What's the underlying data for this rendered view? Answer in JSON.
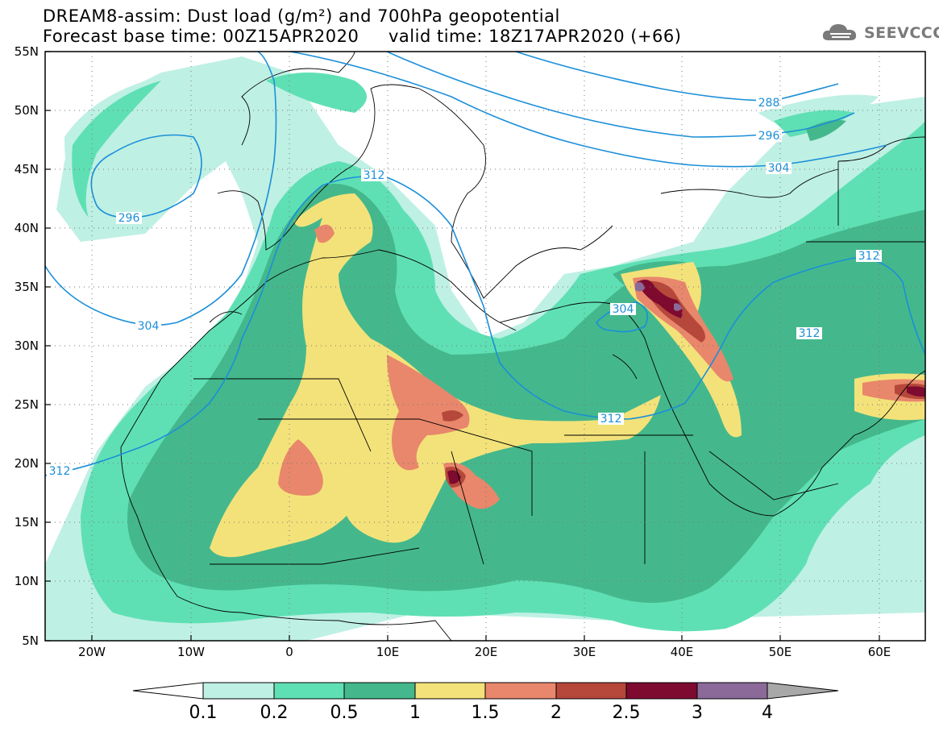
{
  "header": {
    "title": "DREAM8-assim: Dust load (g/m²) and 700hPa geopotential",
    "base_time": "Forecast base time: 00Z15APR2020",
    "valid_time": "valid time: 18Z17APR2020 (+66)",
    "logo_text": "SEEVCCC"
  },
  "map": {
    "lat_labels": [
      "55N",
      "50N",
      "45N",
      "40N",
      "35N",
      "30N",
      "25N",
      "20N",
      "15N",
      "10N",
      "5N"
    ],
    "lon_labels": [
      "20W",
      "10W",
      "0",
      "10E",
      "20E",
      "30E",
      "40E",
      "50E",
      "60E"
    ],
    "contour_labels": [
      "288",
      "296",
      "304",
      "296",
      "312",
      "304",
      "312",
      "312",
      "304",
      "312",
      "312"
    ]
  },
  "colorbar": {
    "levels": [
      "0.1",
      "0.2",
      "0.5",
      "1",
      "1.5",
      "2",
      "2.5",
      "3",
      "4"
    ],
    "colors": [
      "#ffffff",
      "#bff0e4",
      "#5fe0b4",
      "#44b88c",
      "#f3e27a",
      "#e8876b",
      "#b5473b",
      "#7e0a2f",
      "#8b6a9a",
      "#a8a8a8"
    ]
  }
}
